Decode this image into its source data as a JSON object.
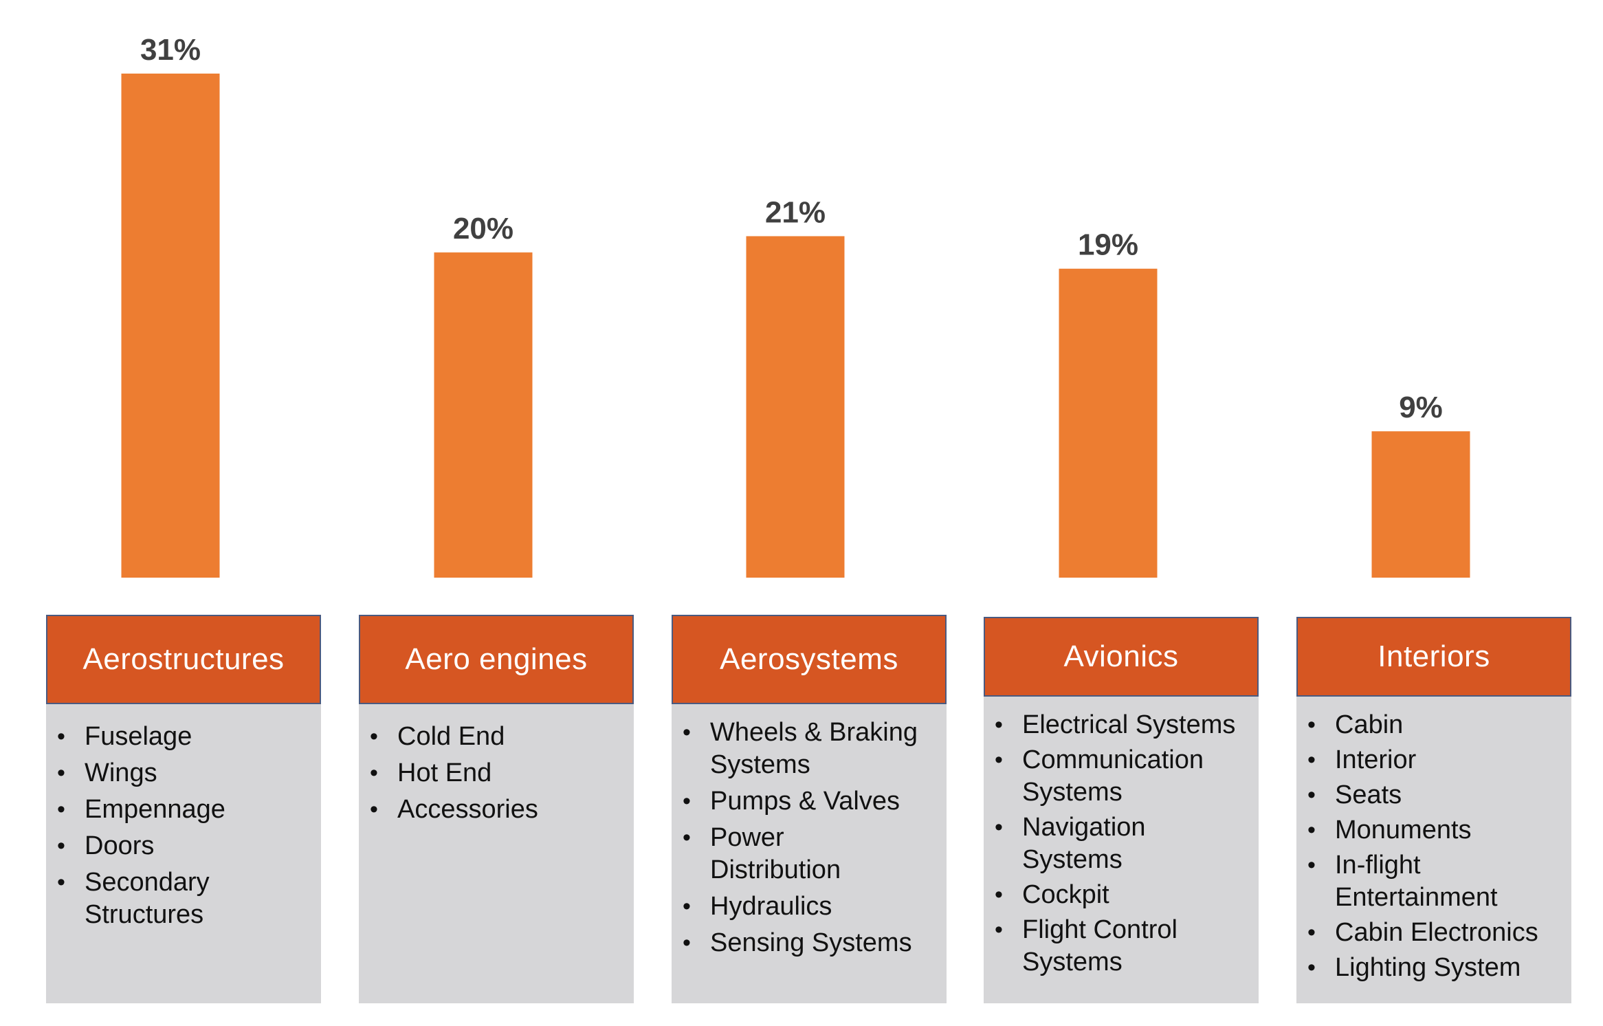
{
  "colors": {
    "bar": "#ed7d31",
    "header": "#d65622",
    "header_border": "#4a5a80",
    "body_bg": "#d6d6d8",
    "label": "#404040"
  },
  "chart_data": {
    "type": "bar",
    "categories": [
      "Aerostructures",
      "Aero engines",
      "Aerosystems",
      "Avionics",
      "Interiors"
    ],
    "values": [
      31,
      20,
      21,
      19,
      9
    ],
    "data_labels": [
      "31%",
      "20%",
      "21%",
      "19%",
      "9%"
    ],
    "ylim": [
      0,
      31
    ],
    "grid": false,
    "legend": "none",
    "title": "",
    "xlabel": "",
    "ylabel": ""
  },
  "cards": [
    {
      "title": "Aerostructures",
      "items": [
        "Fuselage",
        "Wings",
        "Empennage",
        "Doors",
        "Secondary Structures"
      ]
    },
    {
      "title": "Aero engines",
      "items": [
        "Cold End",
        "Hot End",
        "Accessories"
      ]
    },
    {
      "title": "Aerosystems",
      "items": [
        "Wheels & Braking Systems",
        "Pumps & Valves",
        "Power Distribution",
        "Hydraulics",
        "Sensing Systems"
      ]
    },
    {
      "title": "Avionics",
      "items": [
        "Electrical Systems",
        "Communication Systems",
        "Navigation Systems",
        "Cockpit",
        "Flight Control Systems"
      ]
    },
    {
      "title": "Interiors",
      "items": [
        "Cabin",
        "Interior",
        "Seats",
        "Monuments",
        "In-flight Entertainment",
        "Cabin Electronics",
        "Lighting System"
      ]
    }
  ]
}
